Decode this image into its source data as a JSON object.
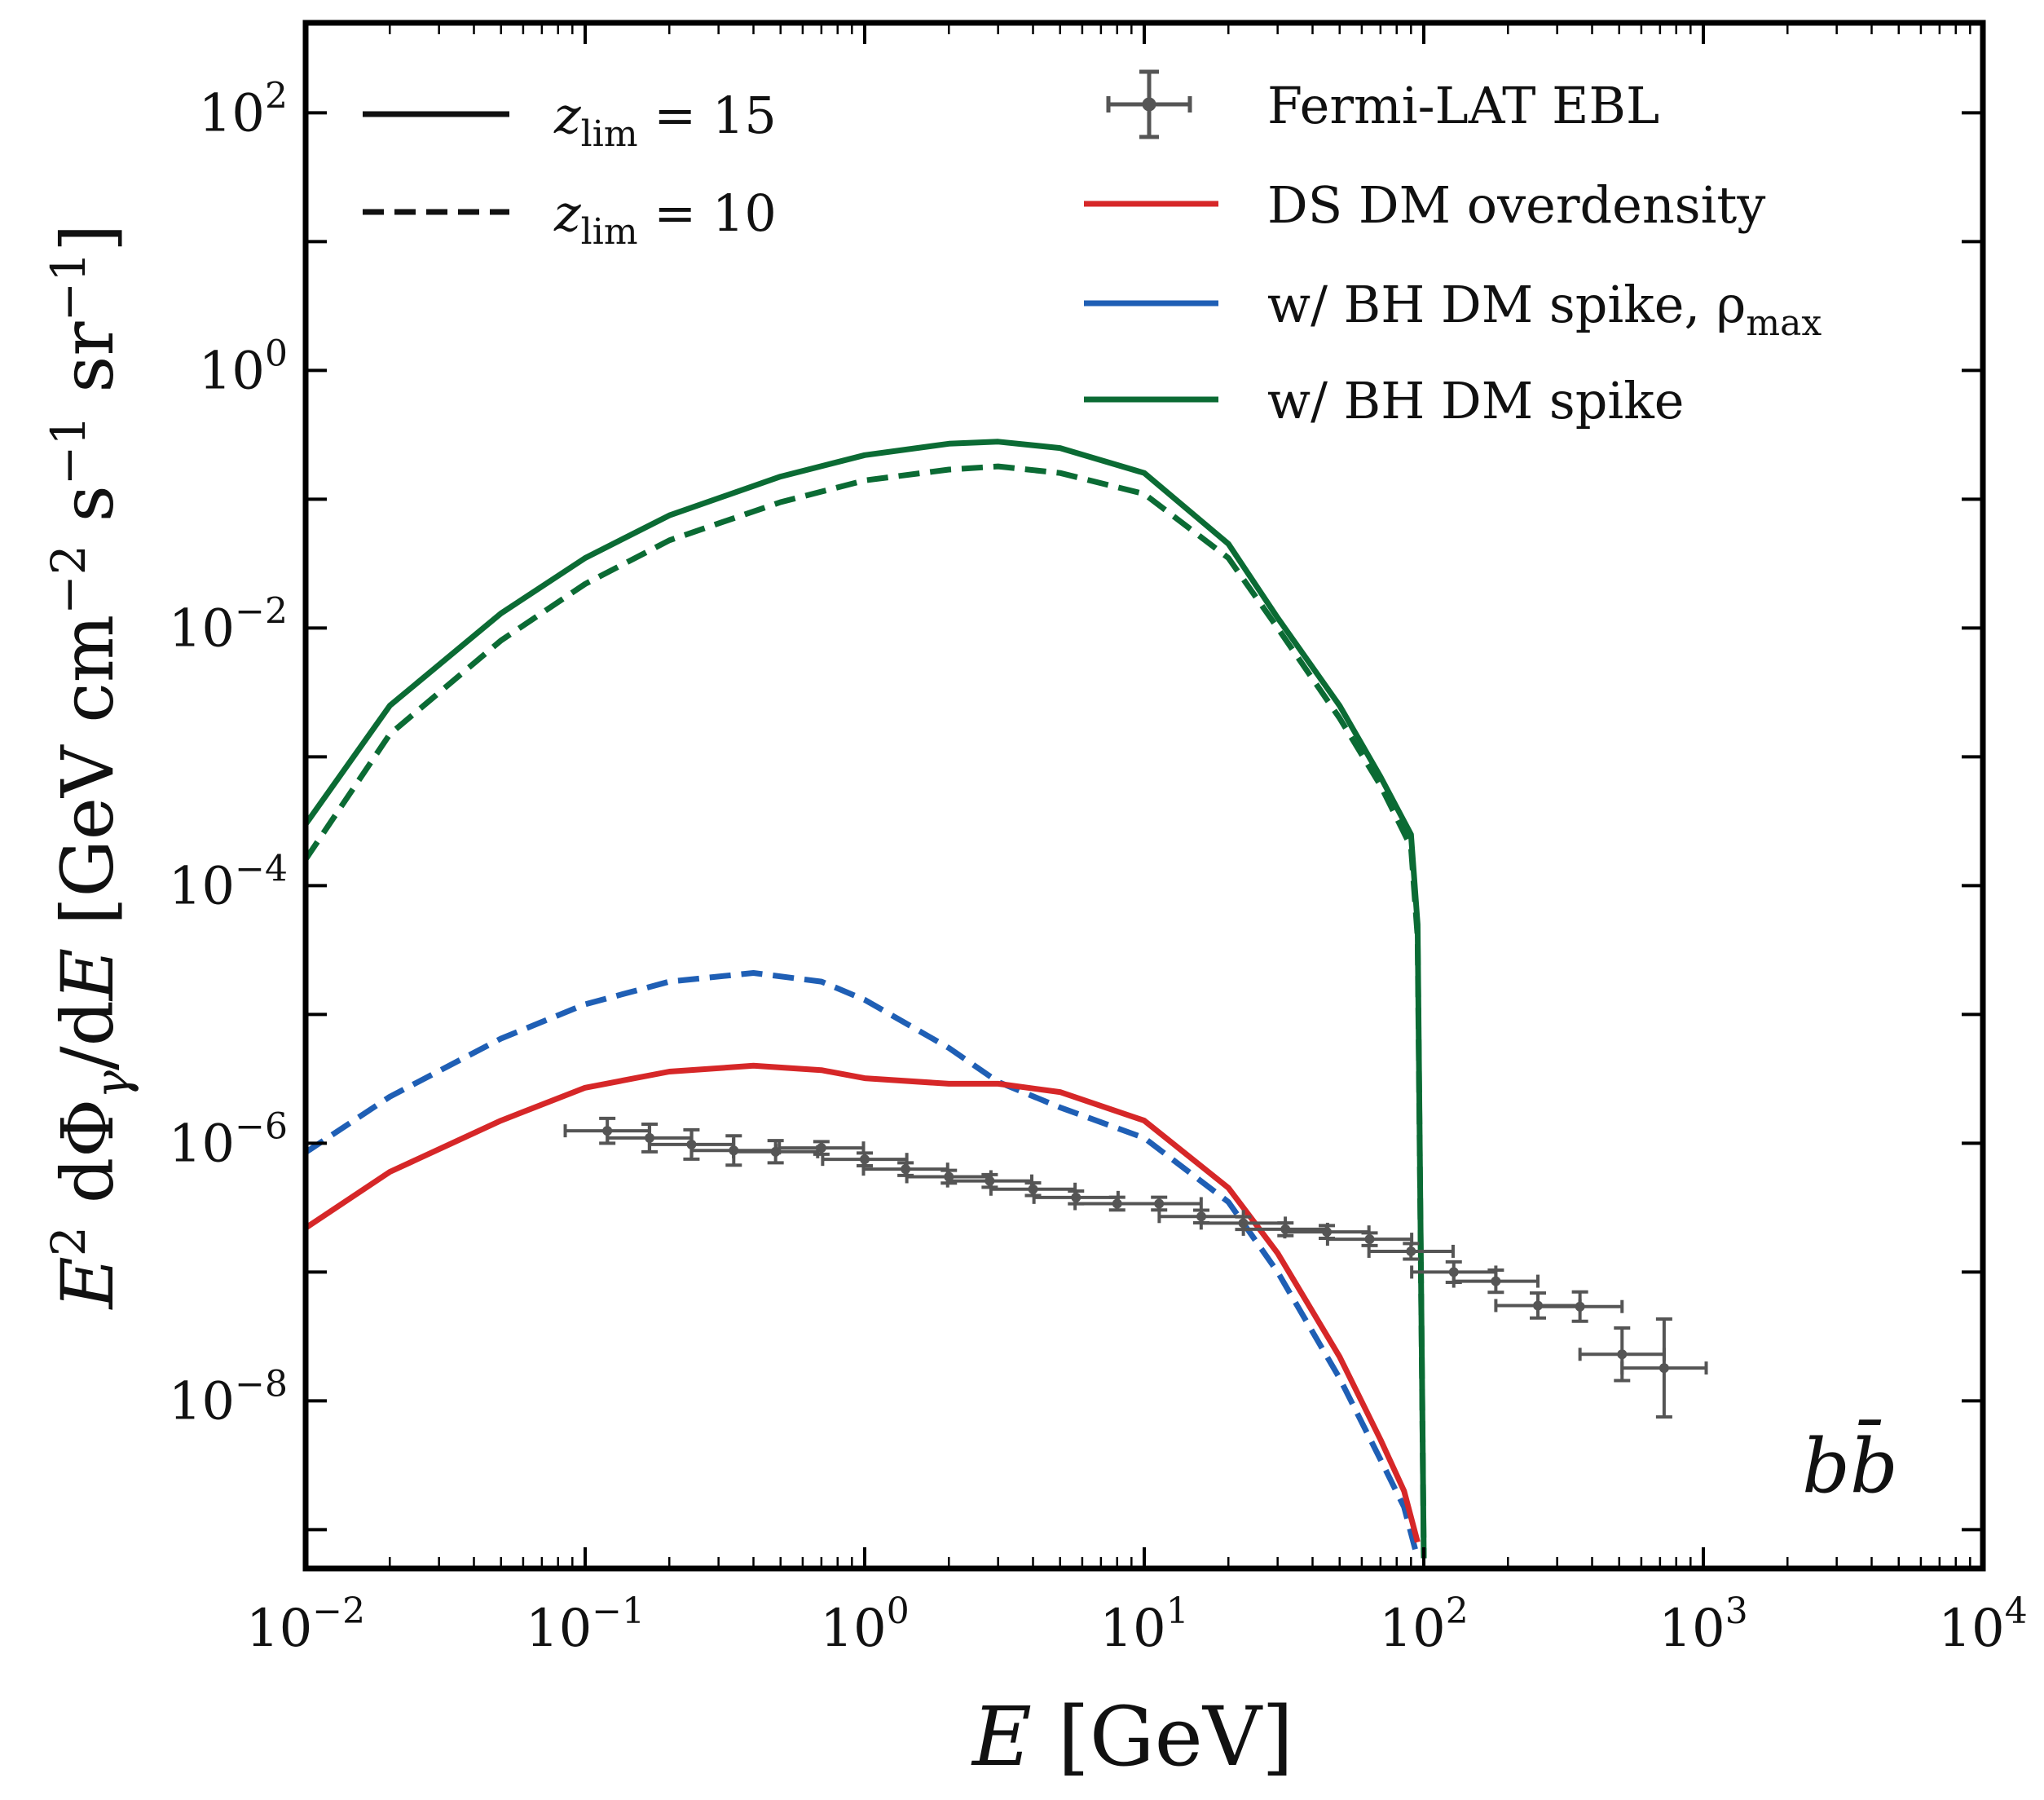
{
  "chart_data": {
    "type": "line",
    "title": "",
    "xlabel": "E [GeV]",
    "ylabel": "E² dΦγ/dE [GeV cm⁻² s⁻¹ sr⁻¹]",
    "xscale": "log",
    "yscale": "log",
    "xlim": [
      0.01,
      10000
    ],
    "ylim": [
      5e-10,
      500
    ],
    "x_ticks": [
      "10^-2",
      "10^-1",
      "10^0",
      "10^1",
      "10^2",
      "10^3",
      "10^4"
    ],
    "y_ticks": [
      "10^-8",
      "10^-6",
      "10^-4",
      "10^-2",
      "10^0",
      "10^2"
    ],
    "annotation": "bb̄",
    "legend_position": "top",
    "legend_left": [
      {
        "label": "z_lim = 15",
        "style": "solid"
      },
      {
        "label": "z_lim = 10",
        "style": "dashed"
      }
    ],
    "legend_right": [
      {
        "label": "Fermi-LAT EBL",
        "marker": "errorbar",
        "color": "#555555"
      },
      {
        "label": "DS DM overdensity",
        "color": "#d62728"
      },
      {
        "label": "w/ BH DM spike, ρ_max",
        "color": "#1f5fb5"
      },
      {
        "label": "w/ BH DM spike",
        "color": "#0b6b34"
      }
    ],
    "series": [
      {
        "name": "w/ BH DM spike (z_lim = 15)",
        "color": "#0b6b34",
        "style": "solid",
        "points": [
          [
            0.01,
            0.0003
          ],
          [
            0.02,
            0.0025
          ],
          [
            0.05,
            0.013
          ],
          [
            0.1,
            0.035
          ],
          [
            0.2,
            0.075
          ],
          [
            0.5,
            0.15
          ],
          [
            1,
            0.22
          ],
          [
            2,
            0.27
          ],
          [
            3,
            0.28
          ],
          [
            5,
            0.25
          ],
          [
            10,
            0.16
          ],
          [
            20,
            0.045
          ],
          [
            30,
            0.012
          ],
          [
            50,
            0.0025
          ],
          [
            70,
            0.0007
          ],
          [
            90,
            0.00025
          ],
          [
            95,
            5e-05
          ],
          [
            100,
            6e-10
          ]
        ]
      },
      {
        "name": "w/ BH DM spike (z_lim = 10)",
        "color": "#0b6b34",
        "style": "dashed",
        "points": [
          [
            0.01,
            0.00016
          ],
          [
            0.02,
            0.0015
          ],
          [
            0.05,
            0.008
          ],
          [
            0.1,
            0.022
          ],
          [
            0.2,
            0.048
          ],
          [
            0.5,
            0.095
          ],
          [
            1,
            0.14
          ],
          [
            2,
            0.17
          ],
          [
            3,
            0.18
          ],
          [
            5,
            0.16
          ],
          [
            10,
            0.11
          ],
          [
            20,
            0.035
          ],
          [
            30,
            0.01
          ],
          [
            50,
            0.002
          ],
          [
            70,
            0.0006
          ],
          [
            90,
            0.0002
          ],
          [
            95,
            4e-05
          ],
          [
            100,
            6e-10
          ]
        ]
      },
      {
        "name": "w/ BH DM spike, ρ_max (z_lim = 10)",
        "color": "#1f5fb5",
        "style": "dashed",
        "points": [
          [
            0.01,
            8.5e-07
          ],
          [
            0.02,
            2.3e-06
          ],
          [
            0.05,
            6.5e-06
          ],
          [
            0.1,
            1.2e-05
          ],
          [
            0.2,
            1.8e-05
          ],
          [
            0.4,
            2.1e-05
          ],
          [
            0.7,
            1.8e-05
          ],
          [
            1,
            1.3e-05
          ],
          [
            2,
            5.5e-06
          ],
          [
            3,
            3e-06
          ],
          [
            5,
            1.9e-06
          ],
          [
            10,
            1.1e-06
          ],
          [
            20,
            3.5e-07
          ],
          [
            30,
            1e-07
          ],
          [
            50,
            1.5e-08
          ],
          [
            70,
            3.5e-09
          ],
          [
            85,
            1.5e-09
          ],
          [
            95,
            6e-10
          ]
        ]
      },
      {
        "name": "DS DM overdensity (z_lim = 15)",
        "color": "#d62728",
        "style": "solid",
        "points": [
          [
            0.01,
            2.2e-07
          ],
          [
            0.02,
            6e-07
          ],
          [
            0.05,
            1.5e-06
          ],
          [
            0.1,
            2.7e-06
          ],
          [
            0.2,
            3.6e-06
          ],
          [
            0.4,
            4e-06
          ],
          [
            0.7,
            3.7e-06
          ],
          [
            1,
            3.2e-06
          ],
          [
            2,
            2.9e-06
          ],
          [
            3,
            2.9e-06
          ],
          [
            5,
            2.5e-06
          ],
          [
            10,
            1.5e-06
          ],
          [
            20,
            4.5e-07
          ],
          [
            30,
            1.4e-07
          ],
          [
            50,
            2.2e-08
          ],
          [
            70,
            5e-09
          ],
          [
            85,
            2e-09
          ],
          [
            95,
            8e-10
          ]
        ]
      },
      {
        "name": "Fermi-LAT EBL",
        "color": "#555555",
        "style": "errorbar",
        "points": [
          [
            0.12,
            1.25e-06
          ],
          [
            0.17,
            1.1e-06
          ],
          [
            0.24,
            9.8e-07
          ],
          [
            0.34,
            8.8e-07
          ],
          [
            0.48,
            8.6e-07
          ],
          [
            0.7,
            9.2e-07
          ],
          [
            1.0,
            7.5e-07
          ],
          [
            1.4,
            6.3e-07
          ],
          [
            2.0,
            5.5e-07
          ],
          [
            2.8,
            5.1e-07
          ],
          [
            4.0,
            4.4e-07
          ],
          [
            5.7,
            3.8e-07
          ],
          [
            8.0,
            3.4e-07
          ],
          [
            11.3,
            3.4e-07
          ],
          [
            16,
            2.7e-07
          ],
          [
            22.6,
            2.4e-07
          ],
          [
            32,
            2.15e-07
          ],
          [
            45,
            2.05e-07
          ],
          [
            64,
            1.8e-07
          ],
          [
            90,
            1.45e-07
          ],
          [
            128,
            1e-07
          ],
          [
            181,
            8.5e-08
          ],
          [
            256,
            5.5e-08
          ],
          [
            362,
            5.4e-08
          ],
          [
            512,
            2.3e-08
          ],
          [
            724,
            1.8e-08
          ]
        ],
        "yerr_factor": [
          1.25,
          1.28,
          1.3,
          1.3,
          1.22,
          1.12,
          1.12,
          1.12,
          1.12,
          1.12,
          1.12,
          1.12,
          1.12,
          1.12,
          1.12,
          1.12,
          1.12,
          1.12,
          1.12,
          1.15,
          1.2,
          1.22,
          1.25,
          1.3,
          1.6,
          2.4
        ]
      }
    ]
  }
}
